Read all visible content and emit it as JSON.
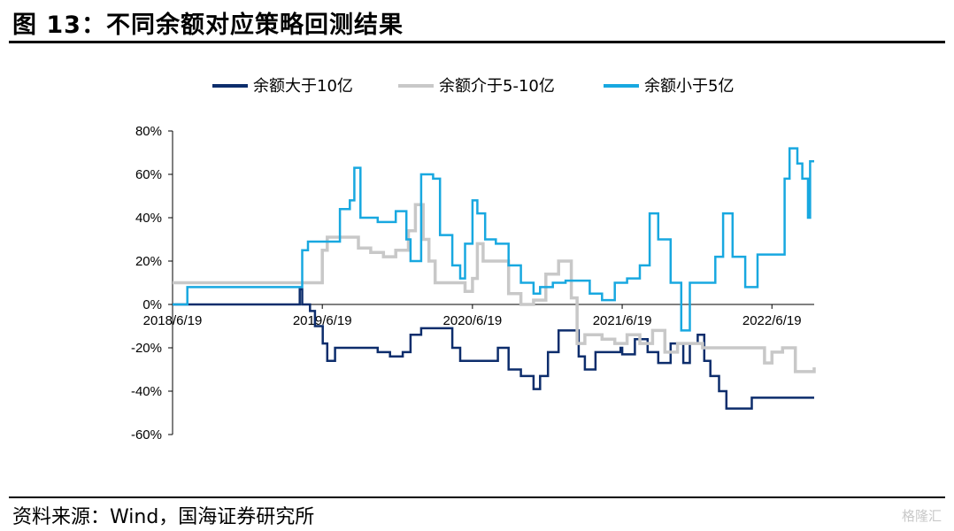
{
  "figure": {
    "title": "图 13：不同余额对应策略回测结果",
    "source": "资料来源：Wind，国海证券研究所",
    "watermark": "格隆汇"
  },
  "chart_data": {
    "type": "line",
    "title": "",
    "xlabel": "",
    "ylabel": "",
    "x_ticks": [
      "2018/6/19",
      "2019/6/19",
      "2020/6/19",
      "2021/6/19",
      "2022/6/19"
    ],
    "y_ticks": [
      "80%",
      "60%",
      "40%",
      "20%",
      "0%",
      "-20%",
      "-40%",
      "-60%"
    ],
    "ylim": [
      -60,
      80
    ],
    "xlim": [
      "2018/6/19",
      "2022/9/30"
    ],
    "legend_position": "top",
    "grid": false,
    "series": [
      {
        "name": "余额大于10亿",
        "color": "#0d2d6c",
        "points": [
          [
            "2018/6/19",
            0
          ],
          [
            "2019/3/20",
            0
          ],
          [
            "2019/4/20",
            0
          ],
          [
            "2019/4/25",
            7
          ],
          [
            "2019/5/1",
            0
          ],
          [
            "2019/5/20",
            -3
          ],
          [
            "2019/6/1",
            -10
          ],
          [
            "2019/6/20",
            -18
          ],
          [
            "2019/7/1",
            -26
          ],
          [
            "2019/7/20",
            -20
          ],
          [
            "2019/10/1",
            -20
          ],
          [
            "2019/11/1",
            -22
          ],
          [
            "2019/12/1",
            -24
          ],
          [
            "2020/1/1",
            -22
          ],
          [
            "2020/1/20",
            -14
          ],
          [
            "2020/2/15",
            -11
          ],
          [
            "2020/4/1",
            -11
          ],
          [
            "2020/5/1",
            -20
          ],
          [
            "2020/5/20",
            -26
          ],
          [
            "2020/6/15",
            -26
          ],
          [
            "2020/8/1",
            -26
          ],
          [
            "2020/8/20",
            -20
          ],
          [
            "2020/9/15",
            -30
          ],
          [
            "2020/10/15",
            -33
          ],
          [
            "2020/11/15",
            -39
          ],
          [
            "2020/12/1",
            -33
          ],
          [
            "2020/12/20",
            -22
          ],
          [
            "2021/1/15",
            -12
          ],
          [
            "2021/2/15",
            -12
          ],
          [
            "2021/3/5",
            -24
          ],
          [
            "2021/3/20",
            -30
          ],
          [
            "2021/4/15",
            -22
          ],
          [
            "2021/5/20",
            -22
          ],
          [
            "2021/6/15",
            -20
          ],
          [
            "2021/6/19",
            -23
          ],
          [
            "2021/7/20",
            -16
          ],
          [
            "2021/8/20",
            -22
          ],
          [
            "2021/9/15",
            -27
          ],
          [
            "2021/10/15",
            -18
          ],
          [
            "2021/11/15",
            -27
          ],
          [
            "2021/12/1",
            -18
          ],
          [
            "2021/12/20",
            -14
          ],
          [
            "2022/1/5",
            -26
          ],
          [
            "2022/1/20",
            -33
          ],
          [
            "2022/2/10",
            -40
          ],
          [
            "2022/2/28",
            -48
          ],
          [
            "2022/4/15",
            -48
          ],
          [
            "2022/5/1",
            -43
          ],
          [
            "2022/9/30",
            -43
          ]
        ]
      },
      {
        "name": "余额介于5-10亿",
        "color": "#c8c8c8",
        "points": [
          [
            "2018/6/19",
            10
          ],
          [
            "2019/6/1",
            10
          ],
          [
            "2019/6/10",
            10
          ],
          [
            "2019/6/19",
            25
          ],
          [
            "2019/7/1",
            31
          ],
          [
            "2019/8/15",
            31
          ],
          [
            "2019/9/15",
            26
          ],
          [
            "2019/10/15",
            24
          ],
          [
            "2019/11/15",
            22
          ],
          [
            "2019/12/15",
            25
          ],
          [
            "2020/1/15",
            34
          ],
          [
            "2020/2/1",
            46
          ],
          [
            "2020/2/20",
            30
          ],
          [
            "2020/3/5",
            20
          ],
          [
            "2020/3/20",
            10
          ],
          [
            "2020/5/15",
            10
          ],
          [
            "2020/6/1",
            6
          ],
          [
            "2020/6/19",
            12
          ],
          [
            "2020/7/1",
            28
          ],
          [
            "2020/7/15",
            20
          ],
          [
            "2020/8/15",
            20
          ],
          [
            "2020/9/15",
            5
          ],
          [
            "2020/10/15",
            0
          ],
          [
            "2020/11/15",
            2
          ],
          [
            "2020/12/15",
            14
          ],
          [
            "2021/1/15",
            20
          ],
          [
            "2021/2/15",
            3
          ],
          [
            "2021/3/1",
            -18
          ],
          [
            "2021/3/20",
            -14
          ],
          [
            "2021/5/1",
            -16
          ],
          [
            "2021/6/1",
            -18
          ],
          [
            "2021/7/1",
            -14
          ],
          [
            "2021/8/1",
            -18
          ],
          [
            "2021/9/1",
            -12
          ],
          [
            "2021/10/1",
            -22
          ],
          [
            "2021/11/1",
            -18
          ],
          [
            "2021/12/1",
            -18
          ],
          [
            "2022/1/1",
            -20
          ],
          [
            "2022/2/1",
            -20
          ],
          [
            "2022/3/15",
            -20
          ],
          [
            "2022/5/1",
            -20
          ],
          [
            "2022/6/1",
            -27
          ],
          [
            "2022/6/19",
            -22
          ],
          [
            "2022/7/15",
            -20
          ],
          [
            "2022/8/15",
            -31
          ],
          [
            "2022/9/30",
            -29
          ]
        ]
      },
      {
        "name": "余额小于5亿",
        "color": "#18a8e0",
        "points": [
          [
            "2018/6/19",
            0
          ],
          [
            "2018/7/15",
            0
          ],
          [
            "2018/7/25",
            8
          ],
          [
            "2019/4/20",
            8
          ],
          [
            "2019/5/1",
            25
          ],
          [
            "2019/5/15",
            29
          ],
          [
            "2019/7/15",
            29
          ],
          [
            "2019/8/1",
            44
          ],
          [
            "2019/8/25",
            48
          ],
          [
            "2019/9/5",
            63
          ],
          [
            "2019/9/20",
            40
          ],
          [
            "2019/11/1",
            38
          ],
          [
            "2019/12/1",
            38
          ],
          [
            "2019/12/15",
            43
          ],
          [
            "2020/1/10",
            30
          ],
          [
            "2020/1/20",
            20
          ],
          [
            "2020/2/15",
            60
          ],
          [
            "2020/3/15",
            58
          ],
          [
            "2020/4/1",
            32
          ],
          [
            "2020/5/1",
            18
          ],
          [
            "2020/5/20",
            12
          ],
          [
            "2020/6/1",
            28
          ],
          [
            "2020/6/19",
            48
          ],
          [
            "2020/7/1",
            42
          ],
          [
            "2020/7/20",
            30
          ],
          [
            "2020/8/15",
            28
          ],
          [
            "2020/9/15",
            18
          ],
          [
            "2020/10/15",
            10
          ],
          [
            "2020/11/15",
            5
          ],
          [
            "2020/12/1",
            8
          ],
          [
            "2021/1/1",
            10
          ],
          [
            "2021/2/1",
            11
          ],
          [
            "2021/3/1",
            11
          ],
          [
            "2021/4/1",
            5
          ],
          [
            "2021/5/1",
            2
          ],
          [
            "2021/6/1",
            10
          ],
          [
            "2021/7/1",
            12
          ],
          [
            "2021/8/1",
            18
          ],
          [
            "2021/8/25",
            42
          ],
          [
            "2021/9/15",
            30
          ],
          [
            "2021/10/15",
            10
          ],
          [
            "2021/11/10",
            -12
          ],
          [
            "2021/12/1",
            10
          ],
          [
            "2022/1/1",
            10
          ],
          [
            "2022/2/1",
            22
          ],
          [
            "2022/2/20",
            42
          ],
          [
            "2022/3/15",
            22
          ],
          [
            "2022/4/15",
            8
          ],
          [
            "2022/5/15",
            23
          ],
          [
            "2022/6/19",
            23
          ],
          [
            "2022/7/1",
            23
          ],
          [
            "2022/7/20",
            58
          ],
          [
            "2022/8/1",
            72
          ],
          [
            "2022/8/20",
            65
          ],
          [
            "2022/9/1",
            58
          ],
          [
            "2022/9/15",
            40
          ],
          [
            "2022/9/20",
            66
          ],
          [
            "2022/9/30",
            66
          ]
        ]
      }
    ]
  }
}
